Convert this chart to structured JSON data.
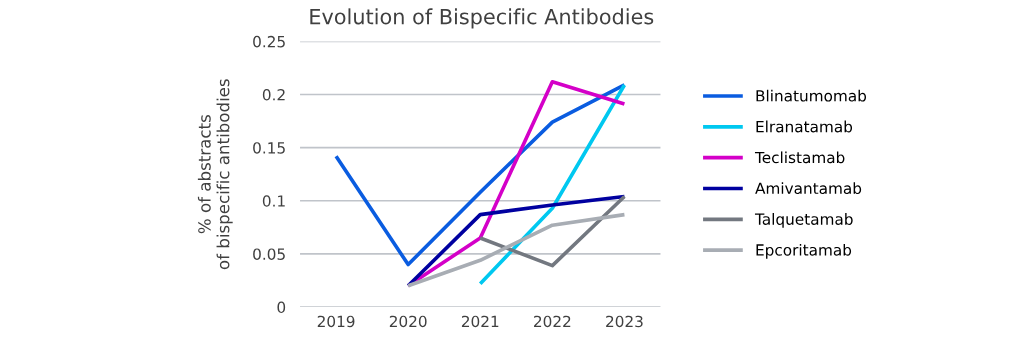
{
  "chart_data": {
    "type": "line",
    "title": "Evolution of Bispecific Antibodies",
    "ylabel": "% of abstracts\nof bispecific antibodies",
    "categories": [
      "2019",
      "2020",
      "2021",
      "2022",
      "2023"
    ],
    "series": [
      {
        "name": "Blinatumomab",
        "color": "#0a5ce0",
        "values": [
          0.142,
          0.04,
          0.108,
          0.174,
          0.209
        ]
      },
      {
        "name": "Elranatamab",
        "color": "#00c8f0",
        "values": [
          null,
          null,
          0.022,
          0.093,
          0.209
        ]
      },
      {
        "name": "Teclistamab",
        "color": "#d400c8",
        "values": [
          null,
          0.02,
          0.065,
          0.212,
          0.191
        ]
      },
      {
        "name": "Amivantamab",
        "color": "#0000a0",
        "values": [
          null,
          0.02,
          0.087,
          0.096,
          0.104
        ]
      },
      {
        "name": "Talquetamab",
        "color": "#737880",
        "values": [
          null,
          null,
          0.065,
          0.039,
          0.104
        ]
      },
      {
        "name": "Epcoritamab",
        "color": "#a8adb4",
        "values": [
          null,
          0.02,
          0.044,
          0.077,
          0.087
        ]
      }
    ],
    "ylim": [
      0,
      0.25
    ],
    "yticks": [
      0,
      0.05,
      0.1,
      0.15,
      0.2,
      0.25
    ],
    "grid": "y",
    "legend": "right",
    "marker": "none",
    "line_style": "solid"
  }
}
